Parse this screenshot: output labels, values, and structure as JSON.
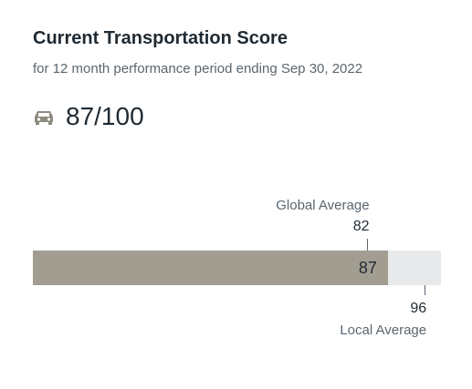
{
  "header": {
    "title": "Current Transportation Score",
    "subtitle": "for 12 month performance period ending Sep 30, 2022"
  },
  "score": {
    "icon": "car-icon",
    "display": "87/100",
    "value": 87,
    "max": 100
  },
  "bar": {
    "fill_label": "87",
    "fill_color": "#a29d91",
    "track_color": "#e8e9eb"
  },
  "global_average": {
    "label": "Global Average",
    "value_label": "82",
    "value": 82
  },
  "local_average": {
    "label": "Local Average",
    "value_label": "96",
    "value": 96
  }
}
